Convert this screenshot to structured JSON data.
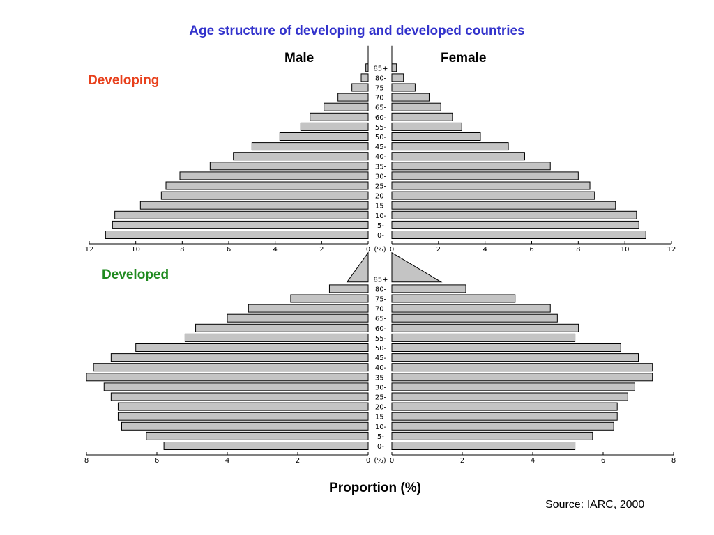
{
  "title": "Age structure of developing and developed countries",
  "labels": {
    "male": "Male",
    "female": "Female",
    "developing": "Developing",
    "developed": "Developed",
    "proportion": "Proportion (%)",
    "source": "Source: IARC, 2000",
    "percent_unit": "(%)"
  },
  "colors": {
    "title": "#3333cc",
    "developing": "#e8401c",
    "developed": "#1f8a1f",
    "bar_fill": "#c4c4c4"
  },
  "chart_data": [
    {
      "type": "bar",
      "orientation": "horizontal-pyramid",
      "panel_label": "Developing",
      "categories": [
        "0-",
        "5-",
        "10-",
        "15-",
        "20-",
        "25-",
        "30-",
        "35-",
        "40-",
        "45-",
        "50-",
        "55-",
        "60-",
        "65-",
        "70-",
        "75-",
        "80-",
        "85+"
      ],
      "series": [
        {
          "name": "Male",
          "values": [
            11.3,
            11.0,
            10.9,
            9.8,
            8.9,
            8.7,
            8.1,
            6.8,
            5.8,
            5.0,
            3.8,
            2.9,
            2.5,
            1.9,
            1.3,
            0.7,
            0.3,
            0.1
          ]
        },
        {
          "name": "Female",
          "values": [
            10.9,
            10.6,
            10.5,
            9.6,
            8.7,
            8.5,
            8.0,
            6.8,
            5.7,
            5.0,
            3.8,
            3.0,
            2.6,
            2.1,
            1.6,
            1.0,
            0.5,
            0.2
          ]
        }
      ],
      "xlim": [
        0,
        12
      ],
      "ticks": [
        12,
        10,
        8,
        6,
        4,
        2,
        0
      ],
      "ticks_right": [
        0,
        2,
        4,
        6,
        8,
        10,
        12
      ]
    },
    {
      "type": "bar",
      "orientation": "horizontal-pyramid",
      "panel_label": "Developed",
      "categories": [
        "0-",
        "5-",
        "10-",
        "15-",
        "20-",
        "25-",
        "30-",
        "35-",
        "40-",
        "45-",
        "50-",
        "55-",
        "60-",
        "65-",
        "70-",
        "75-",
        "80-",
        "85+"
      ],
      "series": [
        {
          "name": "Male",
          "values": [
            5.8,
            6.3,
            7.0,
            7.1,
            7.1,
            7.3,
            7.5,
            8.0,
            7.8,
            7.3,
            6.6,
            5.2,
            4.9,
            4.0,
            3.4,
            2.2,
            1.1,
            0.6
          ]
        },
        {
          "name": "Female",
          "values": [
            5.2,
            5.7,
            6.3,
            6.4,
            6.4,
            6.7,
            6.9,
            7.4,
            7.4,
            7.0,
            6.5,
            5.2,
            5.3,
            4.7,
            4.5,
            3.5,
            2.1,
            1.4
          ]
        }
      ],
      "xlim": [
        0,
        8
      ],
      "ticks": [
        8,
        6,
        4,
        2,
        0
      ],
      "ticks_right": [
        0,
        2,
        4,
        6,
        8
      ]
    }
  ]
}
